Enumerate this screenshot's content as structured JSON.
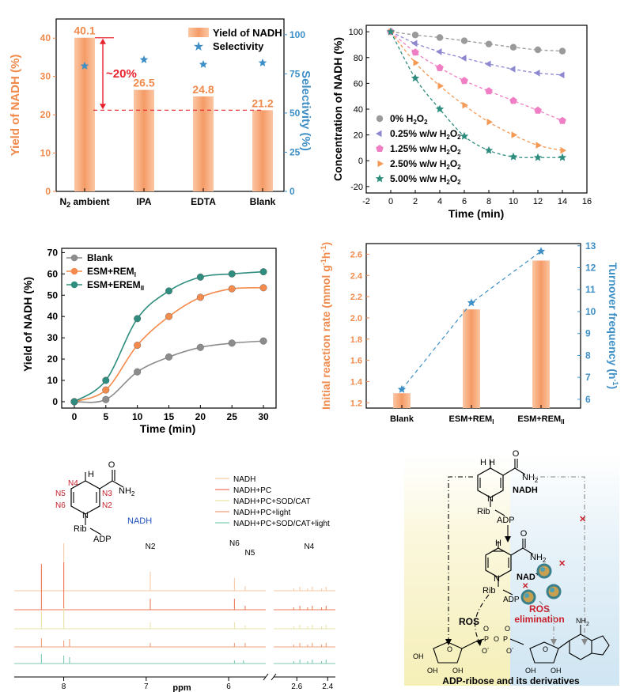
{
  "chart_data": [
    {
      "panel": "a",
      "type": "bar",
      "xlabel": "",
      "ylabel": "Yield of NADH (%)",
      "y2label": "Selectivity (%)",
      "ylim": [
        0,
        45
      ],
      "y2lim": [
        0,
        110
      ],
      "yticks": [
        "0",
        "10",
        "20",
        "30",
        "40"
      ],
      "y2ticks": [
        "0",
        "25",
        "50",
        "75",
        "100"
      ],
      "categories": [
        "N2 ambient",
        "IPA",
        "EDTA",
        "Blank"
      ],
      "cat_main": [
        "N",
        "IPA",
        "EDTA",
        "Blank"
      ],
      "cat_sub": "2",
      "cat_tail": " ambient",
      "values": [
        40.1,
        26.5,
        24.8,
        21.2
      ],
      "value_labels": [
        "40.1",
        "26.5",
        "24.8",
        "21.2"
      ],
      "selectivity": [
        80,
        84,
        81,
        82
      ],
      "legend": [
        "Yield of NADH",
        "Selectivity"
      ],
      "annotation": "~20%",
      "bar_color": "#f5a77a",
      "value_color": "#f08a4b",
      "star_color": "#3d8fc6",
      "annot_color": "#e8222c"
    },
    {
      "panel": "b",
      "type": "line",
      "xlabel": "Time (min)",
      "ylabel": "Concentration of NADH (%)",
      "xlim": [
        -2,
        16
      ],
      "ylim": [
        -25,
        105
      ],
      "xticks": [
        "-2",
        "0",
        "2",
        "4",
        "6",
        "8",
        "10",
        "12",
        "14",
        "16"
      ],
      "yticks": [
        "-20",
        "0",
        "20",
        "40",
        "60",
        "80",
        "100"
      ],
      "x": [
        0,
        2,
        4,
        6,
        8,
        10,
        12,
        14
      ],
      "series": [
        {
          "name": "0% H2O2",
          "label_main": "0% H",
          "label_tail": "O",
          "values": [
            100,
            97.5,
            95.5,
            93,
            90.5,
            88,
            86,
            85
          ],
          "color": "#9a9a9a",
          "marker": "circle"
        },
        {
          "name": "0.25% w/w H2O2",
          "label_main": "0.25% w/w H",
          "label_tail": "O",
          "values": [
            100,
            91,
            84.5,
            79.5,
            75,
            71,
            68,
            66.5
          ],
          "color": "#8d88d0",
          "marker": "tri-left"
        },
        {
          "name": "1.25% w/w H2O2",
          "label_main": "1.25% w/w H",
          "label_tail": "O",
          "values": [
            100,
            84,
            72,
            62,
            54,
            46.5,
            39,
            31
          ],
          "color": "#f07ec4",
          "marker": "pentagon"
        },
        {
          "name": "2.50% w/w H2O2",
          "label_main": "2.50% w/w H",
          "label_tail": "O",
          "values": [
            100,
            76,
            58,
            43,
            30,
            20,
            12,
            8
          ],
          "color": "#f59a56",
          "marker": "tri-right"
        },
        {
          "name": "5.00% w/w H2O2",
          "label_main": "5.00% w/w H",
          "label_tail": "O",
          "values": [
            100,
            64,
            40,
            19,
            8,
            3,
            2.5,
            2.5
          ],
          "color": "#2e8d7e",
          "marker": "star"
        }
      ],
      "sub": "2"
    },
    {
      "panel": "c",
      "type": "line",
      "xlabel": "Time (min)",
      "ylabel": "Yield of NADH (%)",
      "xlim": [
        -2,
        32
      ],
      "ylim": [
        -3,
        72
      ],
      "xticks": [
        "0",
        "5",
        "10",
        "15",
        "20",
        "25",
        "30"
      ],
      "yticks": [
        "0",
        "10",
        "20",
        "30",
        "40",
        "50",
        "60",
        "70"
      ],
      "x": [
        0,
        5,
        10,
        15,
        20,
        25,
        30
      ],
      "series": [
        {
          "name": "Blank",
          "label_main": "Blank",
          "label_sub": "",
          "values": [
            0,
            1,
            14,
            21,
            25.5,
            27.5,
            28.5
          ],
          "color": "#8c8c8c"
        },
        {
          "name": "ESM+REMI",
          "label_main": "ESM+REM",
          "label_sub": "I",
          "values": [
            0,
            5.5,
            26.5,
            40,
            49,
            53,
            53.5
          ],
          "color": "#f48a4c"
        },
        {
          "name": "ESM+EREMII",
          "label_main": "ESM+EREM",
          "label_sub": "II",
          "values": [
            0,
            10,
            39,
            52,
            58.5,
            60,
            61
          ],
          "color": "#2e8d7e"
        }
      ]
    },
    {
      "panel": "d",
      "type": "bar",
      "ylabel": "Initial reaction rate (mmol g-1h-1)",
      "ylabel_main": "Initial reaction rate (mmol g",
      "ylabel_mid": "h",
      "ylabel_end": ")",
      "y2label": "Turnover frequency (h-1)",
      "y2label_main": "Turnover frequency (h",
      "y2label_end": ")",
      "sup": "-1",
      "ylim": [
        1.15,
        2.7
      ],
      "y2lim": [
        5.6,
        13.1
      ],
      "yticks": [
        "1.2",
        "1.4",
        "1.6",
        "1.8",
        "2.0",
        "2.2",
        "2.4",
        "2.6"
      ],
      "y2ticks": [
        "6",
        "7",
        "8",
        "9",
        "10",
        "11",
        "12",
        "13"
      ],
      "categories": [
        "Blank",
        "ESM+REMI",
        "ESM+REMII"
      ],
      "cat_main": [
        "Blank",
        "ESM+REM",
        "ESM+REM"
      ],
      "cat_sub": [
        "",
        "I",
        "II"
      ],
      "values": [
        1.29,
        2.08,
        2.54
      ],
      "tof": [
        6.45,
        10.4,
        12.75
      ],
      "bar_color": "#f5a77a",
      "star_color": "#3d8fc6",
      "axis_color": "#f08a4b",
      "axis2_color": "#3d8fc6"
    },
    {
      "panel": "e",
      "type": "nmr-spectra",
      "xlabel": "ppm",
      "xticks_left": [
        "8",
        "7",
        "6"
      ],
      "xticks_right": [
        "2.6",
        "2.4"
      ],
      "peak_labels": [
        "N2",
        "N6",
        "N5",
        "N4"
      ],
      "legend": [
        "NADH",
        "NADH+PC",
        "NADH+PC+SOD/CAT",
        "NADH+PC+light",
        "NADH+PC+SOD/CAT+light"
      ],
      "colors": [
        "#f8c9a4",
        "#ef7b5e",
        "#e9e3a6",
        "#f1a07c",
        "#7cc9b5"
      ],
      "structure_labels": {
        "n4": "N4",
        "n5": "N5",
        "n6": "N6",
        "n3": "N3",
        "n2": "N2",
        "h": "H",
        "nh2": "NH",
        "nh2_sub": "2",
        "o": "O",
        "n": "N",
        "rib": "Rib",
        "adp": "ADP",
        "name": "NADH"
      },
      "name_color": "#1f4fbf",
      "label_color": "#c8202c"
    }
  ],
  "scheme": {
    "nadh_label": "NADH",
    "nad_label": "NAD",
    "nad_sup": "+",
    "ros_label": "ROS",
    "ros_elim": "ROS",
    "ros_elim2": "elimination",
    "bottom_label": "ADP-ribose and its derivatives",
    "h": "H",
    "o": "O",
    "nh2": "NH",
    "nh2_sub": "2",
    "n": "N",
    "rib": "Rib",
    "adp": "ADP",
    "oh": "OH",
    "p": "P",
    "ominus": "O",
    "minus": "-",
    "ros_color": "#c8202c"
  }
}
